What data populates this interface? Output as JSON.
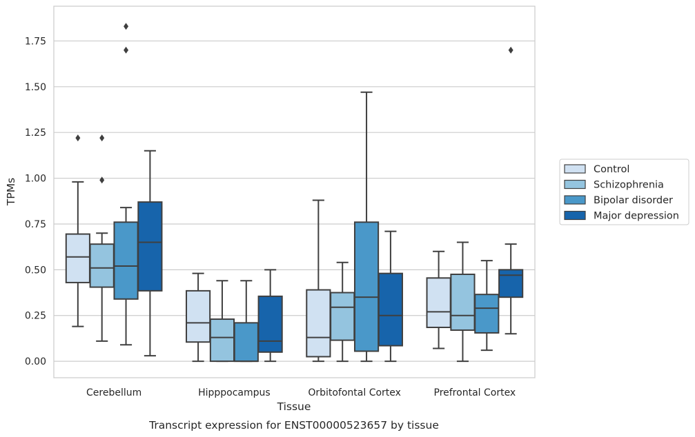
{
  "caption": "Transcript expression for ENST00000523657 by tissue",
  "chart_data": {
    "type": "boxplot",
    "xlabel": "Tissue",
    "ylabel": "TPMs",
    "ylim": [
      -0.09,
      1.94
    ],
    "yticks": [
      "0.00",
      "0.25",
      "0.50",
      "0.75",
      "1.00",
      "1.25",
      "1.50",
      "1.75"
    ],
    "grid": true,
    "legend_position": "right",
    "categories": [
      "Cerebellum",
      "Hipppocampus",
      "Orbitofontal Cortex",
      "Prefrontal Cortex"
    ],
    "series": [
      {
        "name": "Control",
        "color": "#d0e1f2",
        "boxes": [
          {
            "whislo": 0.19,
            "q1": 0.43,
            "med": 0.57,
            "q3": 0.695,
            "whishi": 0.98,
            "fliers": [
              1.22
            ]
          },
          {
            "whislo": 0.0,
            "q1": 0.105,
            "med": 0.21,
            "q3": 0.385,
            "whishi": 0.48,
            "fliers": []
          },
          {
            "whislo": 0.0,
            "q1": 0.025,
            "med": 0.13,
            "q3": 0.39,
            "whishi": 0.88,
            "fliers": []
          },
          {
            "whislo": 0.07,
            "q1": 0.185,
            "med": 0.27,
            "q3": 0.455,
            "whishi": 0.6,
            "fliers": []
          }
        ]
      },
      {
        "name": "Schizophrenia",
        "color": "#94c4df",
        "boxes": [
          {
            "whislo": 0.11,
            "q1": 0.405,
            "med": 0.51,
            "q3": 0.64,
            "whishi": 0.7,
            "fliers": [
              0.99,
              1.22
            ]
          },
          {
            "whislo": 0.0,
            "q1": 0.0,
            "med": 0.13,
            "q3": 0.23,
            "whishi": 0.44,
            "fliers": []
          },
          {
            "whislo": 0.0,
            "q1": 0.115,
            "med": 0.295,
            "q3": 0.375,
            "whishi": 0.54,
            "fliers": []
          },
          {
            "whislo": 0.0,
            "q1": 0.17,
            "med": 0.25,
            "q3": 0.475,
            "whishi": 0.65,
            "fliers": []
          }
        ]
      },
      {
        "name": "Bipolar disorder",
        "color": "#4a98c9",
        "boxes": [
          {
            "whislo": 0.09,
            "q1": 0.34,
            "med": 0.52,
            "q3": 0.76,
            "whishi": 0.84,
            "fliers": [
              1.7,
              1.83
            ]
          },
          {
            "whislo": 0.0,
            "q1": 0.0,
            "med": 0.0,
            "q3": 0.21,
            "whishi": 0.44,
            "fliers": []
          },
          {
            "whislo": 0.0,
            "q1": 0.055,
            "med": 0.35,
            "q3": 0.76,
            "whishi": 1.47,
            "fliers": []
          },
          {
            "whislo": 0.06,
            "q1": 0.155,
            "med": 0.29,
            "q3": 0.365,
            "whishi": 0.55,
            "fliers": []
          }
        ]
      },
      {
        "name": "Major depression",
        "color": "#1764ab",
        "boxes": [
          {
            "whislo": 0.03,
            "q1": 0.385,
            "med": 0.65,
            "q3": 0.87,
            "whishi": 1.15,
            "fliers": []
          },
          {
            "whislo": 0.0,
            "q1": 0.05,
            "med": 0.11,
            "q3": 0.355,
            "whishi": 0.5,
            "fliers": []
          },
          {
            "whislo": 0.0,
            "q1": 0.085,
            "med": 0.25,
            "q3": 0.48,
            "whishi": 0.71,
            "fliers": []
          },
          {
            "whislo": 0.15,
            "q1": 0.35,
            "med": 0.47,
            "q3": 0.5,
            "whishi": 0.64,
            "fliers": [
              1.7
            ]
          }
        ]
      }
    ]
  }
}
